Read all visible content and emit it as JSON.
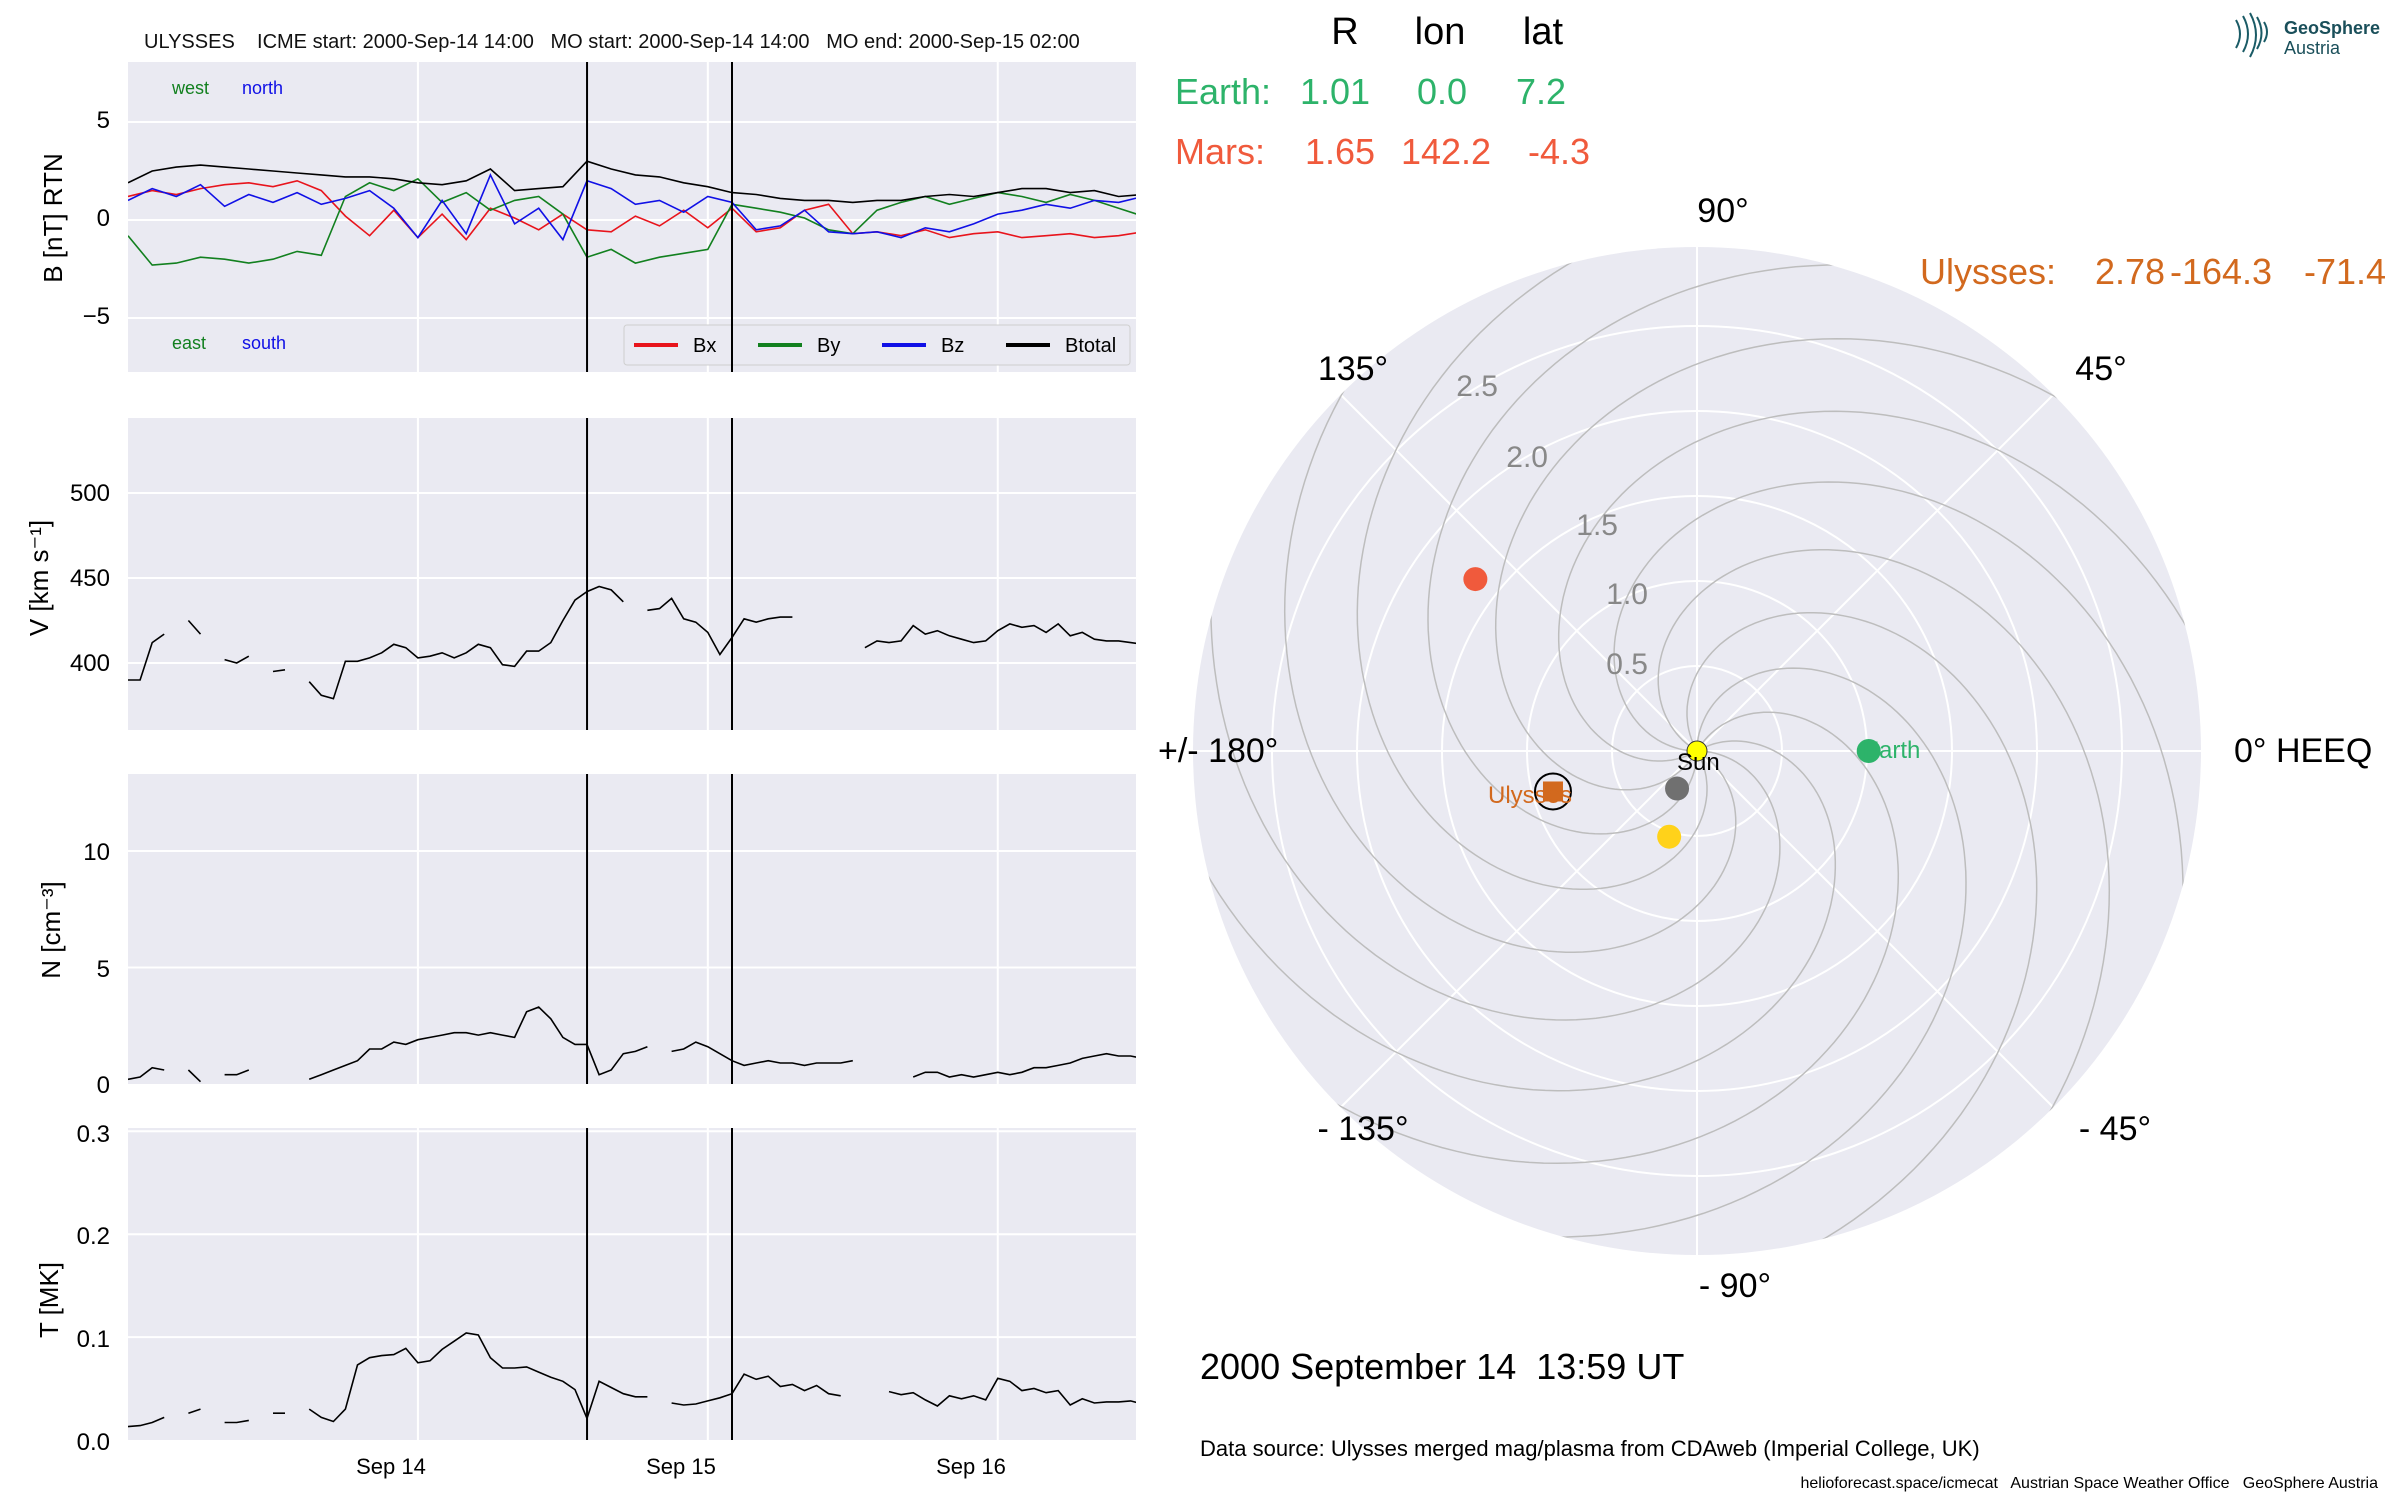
{
  "header": {
    "title": "ULYSSES    ICME start: 2000-Sep-14 14:00   MO start: 2000-Sep-14 14:00   MO end: 2000-Sep-15 02:00"
  },
  "colors": {
    "bx": "#e8141c",
    "by": "#12801f",
    "bz": "#1010e6",
    "btot": "#000000",
    "panel_bg": "#eaeaf2",
    "grid": "#ffffff",
    "earth": "#2db36a",
    "mars": "#f05a3c",
    "ulysses": "#d2691e",
    "sun": "#ffff00",
    "venus": "#ffd21a",
    "mercury": "#707070",
    "spiral": "#bdbdbd"
  },
  "timeseries": {
    "x_ticks": [
      "Sep 14",
      "Sep 15",
      "Sep 16"
    ],
    "event_lines_hours": [
      38,
      50
    ],
    "panels": {
      "b": {
        "ylabel": "B [nT] RTN",
        "ticks": [
          "5",
          "0",
          "−5"
        ],
        "annotations": {
          "west": "west",
          "north": "north",
          "east": "east",
          "south": "south"
        },
        "legend": [
          "Bx",
          "By",
          "Bz",
          "Btotal"
        ]
      },
      "v": {
        "ylabel": "V [km s⁻¹]",
        "ticks": [
          "500",
          "450",
          "400"
        ]
      },
      "n": {
        "ylabel": "N [cm⁻³]",
        "ticks": [
          "10",
          "5",
          "0"
        ]
      },
      "t": {
        "ylabel": "T [MK]",
        "ticks": [
          "0.3",
          "0.2",
          "0.1",
          "0.0"
        ]
      }
    }
  },
  "chart_data": [
    {
      "type": "line",
      "title": "ULYSSES ICME start: 2000-Sep-14 14:00 MO start: 2000-Sep-14 14:00 MO end: 2000-Sep-15 02:00",
      "xlabel": "",
      "ylabel": "B [nT] RTN",
      "x_hours": [
        0,
        2,
        4,
        6,
        8,
        10,
        12,
        14,
        16,
        18,
        20,
        22,
        24,
        26,
        28,
        30,
        32,
        34,
        36,
        38,
        40,
        42,
        44,
        46,
        48,
        50,
        52,
        54,
        56,
        58,
        60,
        62,
        64,
        66,
        68,
        70,
        72,
        74,
        76,
        78,
        80,
        82,
        84,
        86,
        88
      ],
      "ylim": [
        -8,
        8
      ],
      "series": [
        {
          "name": "Bx",
          "values": [
            1.2,
            1.5,
            1.3,
            1.6,
            1.8,
            1.9,
            1.7,
            2.0,
            1.5,
            0.2,
            -0.8,
            0.5,
            -0.9,
            0.3,
            -1.0,
            0.6,
            0.1,
            -0.5,
            0.3,
            -0.5,
            -0.6,
            0.2,
            -0.3,
            0.5,
            -0.4,
            0.6,
            -0.6,
            -0.4,
            0.5,
            0.8,
            -0.7,
            -0.6,
            -0.8,
            -0.5,
            -0.9,
            -0.7,
            -0.6,
            -0.9,
            -0.8,
            -0.7,
            -0.9,
            -0.8,
            -0.6,
            -0.9,
            -0.8
          ]
        },
        {
          "name": "By",
          "values": [
            -0.8,
            -2.3,
            -2.2,
            -1.9,
            -2.0,
            -2.2,
            -2.0,
            -1.6,
            -1.8,
            1.2,
            1.9,
            1.5,
            2.1,
            0.9,
            1.4,
            0.5,
            1.0,
            1.2,
            0.3,
            -1.9,
            -1.5,
            -2.2,
            -1.9,
            -1.7,
            -1.5,
            0.8,
            0.6,
            0.4,
            0.1,
            -0.5,
            -0.7,
            0.5,
            0.9,
            1.2,
            0.8,
            1.1,
            1.4,
            1.2,
            0.9,
            1.3,
            1.0,
            0.6,
            0.2,
            0.1,
            -0.8
          ]
        },
        {
          "name": "Bz",
          "values": [
            1.0,
            1.6,
            1.2,
            1.8,
            0.7,
            1.3,
            0.9,
            1.4,
            0.8,
            1.1,
            1.5,
            0.6,
            -0.9,
            1.0,
            -0.7,
            2.3,
            -0.2,
            0.6,
            -1.0,
            2.0,
            1.6,
            0.8,
            1.0,
            0.4,
            1.2,
            0.9,
            -0.5,
            -0.3,
            0.5,
            -0.6,
            -0.7,
            -0.6,
            -0.9,
            -0.4,
            -0.6,
            -0.2,
            0.3,
            0.5,
            0.8,
            0.6,
            1.0,
            0.9,
            1.2,
            1.3,
            1.0
          ]
        },
        {
          "name": "Btotal",
          "values": [
            1.9,
            2.5,
            2.7,
            2.8,
            2.7,
            2.6,
            2.5,
            2.4,
            2.3,
            2.2,
            2.2,
            2.1,
            1.9,
            1.8,
            2.0,
            2.6,
            1.5,
            1.6,
            1.7,
            3.0,
            2.6,
            2.3,
            2.2,
            1.9,
            1.7,
            1.4,
            1.3,
            1.1,
            1.0,
            1.0,
            0.9,
            1.0,
            1.0,
            1.2,
            1.3,
            1.2,
            1.4,
            1.6,
            1.6,
            1.4,
            1.5,
            1.2,
            1.3,
            1.6,
            1.5
          ]
        }
      ]
    },
    {
      "type": "line",
      "ylabel": "V [km s⁻¹]",
      "ylim": [
        360,
        540
      ],
      "x_hours": [
        0,
        1,
        2,
        3,
        4,
        5,
        6,
        7,
        8,
        9,
        10,
        11,
        12,
        13,
        14,
        15,
        16,
        17,
        18,
        19,
        20,
        21,
        22,
        23,
        24,
        25,
        26,
        27,
        28,
        29,
        30,
        31,
        32,
        33,
        34,
        35,
        36,
        37,
        38,
        39,
        40,
        41,
        42,
        43,
        44,
        45,
        46,
        47,
        48,
        49,
        50,
        51,
        52,
        53,
        54,
        55,
        56,
        57,
        58,
        59,
        60,
        61,
        62,
        63,
        64,
        65,
        66,
        67,
        68,
        69,
        70,
        71,
        72,
        73,
        74,
        75,
        76,
        77,
        78,
        79,
        80,
        81,
        82,
        83,
        84,
        85,
        86,
        87,
        88
      ],
      "series": [
        {
          "name": "V",
          "values": [
            390,
            390,
            412,
            417,
            null,
            425,
            417,
            null,
            402,
            400,
            404,
            null,
            395,
            396,
            null,
            389,
            381,
            379,
            401,
            401,
            403,
            406,
            411,
            409,
            403,
            404,
            406,
            403,
            406,
            411,
            409,
            399,
            398,
            407,
            407,
            412,
            425,
            437,
            442,
            445,
            443,
            436,
            null,
            431,
            432,
            438,
            426,
            424,
            418,
            405,
            415,
            426,
            424,
            426,
            427,
            427,
            null,
            null,
            null,
            null,
            null,
            409,
            413,
            412,
            413,
            422,
            417,
            419,
            416,
            414,
            412,
            413,
            419,
            423,
            421,
            422,
            418,
            423,
            416,
            418,
            414,
            413,
            413,
            412,
            411,
            408,
            null,
            null,
            null
          ]
        }
      ]
    },
    {
      "type": "line",
      "ylabel": "N [cm⁻³]",
      "ylim": [
        0,
        13.5
      ],
      "x_hours": [
        0,
        1,
        2,
        3,
        4,
        5,
        6,
        7,
        8,
        9,
        10,
        11,
        12,
        13,
        14,
        15,
        16,
        17,
        18,
        19,
        20,
        21,
        22,
        23,
        24,
        25,
        26,
        27,
        28,
        29,
        30,
        31,
        32,
        33,
        34,
        35,
        36,
        37,
        38,
        39,
        40,
        41,
        42,
        43,
        44,
        45,
        46,
        47,
        48,
        49,
        50,
        51,
        52,
        53,
        54,
        55,
        56,
        57,
        58,
        59,
        60,
        61,
        62,
        63,
        64,
        65,
        66,
        67,
        68,
        69,
        70,
        71,
        72,
        73,
        74,
        75,
        76,
        77,
        78,
        79,
        80,
        81,
        82,
        83,
        84,
        85,
        86,
        87,
        88
      ],
      "series": [
        {
          "name": "N",
          "values": [
            0.2,
            0.3,
            0.7,
            0.6,
            null,
            0.6,
            0.1,
            null,
            0.4,
            0.4,
            0.6,
            null,
            0.8,
            null,
            null,
            0.2,
            0.4,
            0.6,
            0.8,
            1.0,
            1.5,
            1.5,
            1.8,
            1.7,
            1.9,
            2.0,
            2.1,
            2.2,
            2.2,
            2.1,
            2.2,
            2.1,
            2.0,
            3.1,
            3.3,
            2.8,
            2.0,
            1.7,
            1.7,
            0.4,
            0.6,
            1.3,
            1.4,
            1.6,
            null,
            1.4,
            1.5,
            1.8,
            1.6,
            1.3,
            1.0,
            0.8,
            0.9,
            1.0,
            0.9,
            0.9,
            0.8,
            0.9,
            0.9,
            0.9,
            1.0,
            null,
            null,
            null,
            null,
            0.3,
            0.5,
            0.5,
            0.3,
            0.4,
            0.3,
            0.4,
            0.5,
            0.4,
            0.5,
            0.7,
            0.7,
            0.8,
            0.9,
            1.1,
            1.2,
            1.3,
            1.2,
            1.2,
            1.1,
            1.2,
            1.2,
            1.1,
            1.2
          ]
        }
      ]
    },
    {
      "type": "line",
      "ylabel": "T [MK]",
      "ylim": [
        0,
        0.3
      ],
      "x_hours": [
        0,
        1,
        2,
        3,
        4,
        5,
        6,
        7,
        8,
        9,
        10,
        11,
        12,
        13,
        14,
        15,
        16,
        17,
        18,
        19,
        20,
        21,
        22,
        23,
        24,
        25,
        26,
        27,
        28,
        29,
        30,
        31,
        32,
        33,
        34,
        35,
        36,
        37,
        38,
        39,
        40,
        41,
        42,
        43,
        44,
        45,
        46,
        47,
        48,
        49,
        50,
        51,
        52,
        53,
        54,
        55,
        56,
        57,
        58,
        59,
        60,
        61,
        62,
        63,
        64,
        65,
        66,
        67,
        68,
        69,
        70,
        71,
        72,
        73,
        74,
        75,
        76,
        77,
        78,
        79,
        80,
        81,
        82,
        83,
        84,
        85,
        86,
        87,
        88
      ],
      "series": [
        {
          "name": "T",
          "values": [
            0.013,
            0.014,
            0.017,
            0.022,
            null,
            0.026,
            0.03,
            null,
            0.017,
            0.017,
            0.019,
            null,
            0.026,
            0.026,
            null,
            0.03,
            0.022,
            0.018,
            0.03,
            0.073,
            0.08,
            0.082,
            0.083,
            0.089,
            0.075,
            0.077,
            0.088,
            0.096,
            0.104,
            0.102,
            0.08,
            0.07,
            0.07,
            0.071,
            0.066,
            0.061,
            0.057,
            0.049,
            0.021,
            0.057,
            0.051,
            0.045,
            0.042,
            0.042,
            null,
            0.036,
            0.034,
            0.035,
            0.038,
            0.041,
            0.045,
            0.064,
            0.059,
            0.062,
            0.052,
            0.054,
            0.048,
            0.053,
            0.045,
            0.043,
            null,
            null,
            null,
            0.047,
            0.044,
            0.046,
            0.039,
            0.033,
            0.043,
            0.04,
            0.043,
            0.039,
            0.06,
            0.057,
            0.048,
            0.05,
            0.046,
            0.048,
            0.034,
            0.04,
            0.036,
            0.037,
            0.037,
            0.038,
            0.035,
            0.032,
            0.033,
            0.032,
            0.036
          ]
        }
      ]
    },
    {
      "type": "scatter",
      "subtype": "polar",
      "r_ticks": [
        "0.5",
        "1.0",
        "1.5",
        "2.0",
        "2.5"
      ],
      "angle_labels": {
        "a90": "90°",
        "a45": "45°",
        "a0": "0° HEEQ",
        "am45": "- 45°",
        "am90": "- 90°",
        "am135": "- 135°",
        "a180": "+/- 180°",
        "a135": "135°"
      },
      "points": [
        {
          "name": "Sun",
          "r": 0.0,
          "lon": 0.0
        },
        {
          "name": "Earth",
          "r": 1.01,
          "lon": 0.0
        },
        {
          "name": "Mars",
          "r": 1.65,
          "lon": 142.2
        },
        {
          "name": "Ulysses",
          "r": 0.88,
          "lon": -164.3
        },
        {
          "name": "",
          "r": 0.25,
          "lon": -118
        },
        {
          "name": "",
          "r": 0.53,
          "lon": -108
        }
      ]
    }
  ],
  "positions": {
    "headers": {
      "r": "R",
      "lon": "lon",
      "lat": "lat"
    },
    "earth": {
      "label": "Earth:",
      "r": "1.01",
      "lon": "0.0",
      "lat": "7.2"
    },
    "mars": {
      "label": "Mars:",
      "r": "1.65",
      "lon": "142.2",
      "lat": "-4.3"
    },
    "ulysses": {
      "label": "Ulysses:",
      "r": "2.78",
      "lon": "-164.3",
      "lat": "-71.4"
    }
  },
  "polar_labels": {
    "sun": "Sun",
    "earth": "Earth",
    "ulysses": "Ulysses"
  },
  "timestamp": "2000 September 14  13:59 UT",
  "data_source": "Data source: Ulysses merged mag/plasma from CDAweb (Imperial College, UK)",
  "footer": "helioforecast.space/icmecat   Austrian Space Weather Office   GeoSphere Austria",
  "logo": {
    "line1": "GeoSphere",
    "line2": "Austria"
  }
}
